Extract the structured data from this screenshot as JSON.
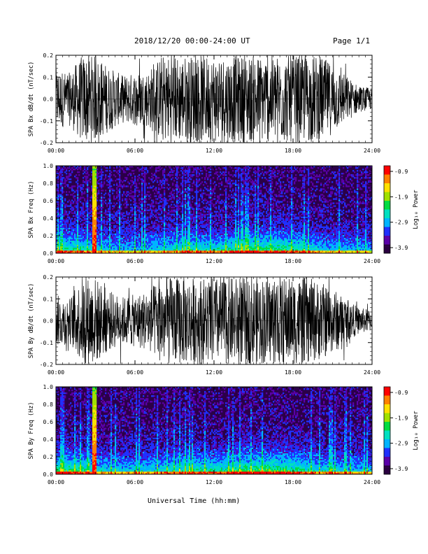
{
  "header": {
    "title": "2018/12/20  00:00-24:00 UT",
    "page": "Page 1/1"
  },
  "xaxis_title": "Universal Time (hh:mm)",
  "colorbar": {
    "label": "Log₁₀ Power",
    "ticks": [
      "-0.9",
      "-1.9",
      "-2.9",
      "-3.9"
    ]
  },
  "colors": {
    "trace": "#000000",
    "spectrogram_background": "#2b0048",
    "colormap": [
      "#2a0040",
      "#5a00a8",
      "#2030ff",
      "#00b4ff",
      "#00e0c0",
      "#00dc40",
      "#a0e000",
      "#ffe000",
      "#ff8000",
      "#ff0000"
    ]
  },
  "chart_data": [
    {
      "type": "line",
      "name": "bx-waveform",
      "ylabel": "SPA Bx dB/dt (nT/sec)",
      "xlim": [
        0,
        24
      ],
      "ylim": [
        -0.2,
        0.2
      ],
      "x_ticks": [
        "00:00",
        "06:00",
        "12:00",
        "18:00",
        "24:00"
      ],
      "y_ticks": [
        "0.2",
        "0.1",
        "0.0",
        "-0.1",
        "-0.2"
      ],
      "envelope_hours": [
        0,
        1,
        2,
        3,
        4,
        5,
        6,
        7,
        8,
        9,
        10,
        11,
        12,
        13,
        14,
        15,
        16,
        17,
        18,
        19,
        20,
        21,
        22,
        23,
        24
      ],
      "envelope_amplitude": [
        0.14,
        0.12,
        0.2,
        0.2,
        0.15,
        0.11,
        0.12,
        0.13,
        0.2,
        0.2,
        0.2,
        0.2,
        0.2,
        0.2,
        0.2,
        0.2,
        0.2,
        0.2,
        0.2,
        0.2,
        0.2,
        0.16,
        0.11,
        0.06,
        0.05
      ]
    },
    {
      "type": "heatmap",
      "name": "bx-spectrogram",
      "ylabel": "SPA Bx Freq (Hz)",
      "xlim": [
        0,
        24
      ],
      "ylim": [
        0,
        1.0
      ],
      "x_ticks": [
        "00:00",
        "06:00",
        "12:00",
        "18:00",
        "24:00"
      ],
      "y_ticks": [
        "1.0",
        "0.8",
        "0.6",
        "0.4",
        "0.2",
        "0.0"
      ],
      "zlim": [
        -3.9,
        -0.9
      ],
      "bright_band_hours": [
        2.8,
        2.9,
        3.0
      ],
      "activity_hours": [
        0,
        2,
        4,
        6,
        8,
        10,
        12,
        14,
        16,
        18,
        20,
        22,
        24
      ],
      "activity_level": [
        0.55,
        0.5,
        0.35,
        0.35,
        0.4,
        0.5,
        0.45,
        0.55,
        0.6,
        0.55,
        0.4,
        0.35,
        0.3
      ]
    },
    {
      "type": "line",
      "name": "by-waveform",
      "ylabel": "SPA By dB/dt (nT/sec)",
      "xlim": [
        0,
        24
      ],
      "ylim": [
        -0.2,
        0.2
      ],
      "x_ticks": [
        "00:00",
        "06:00",
        "12:00",
        "18:00",
        "24:00"
      ],
      "y_ticks": [
        "0.2",
        "0.1",
        "0.0",
        "-0.1",
        "-0.2"
      ],
      "envelope_hours": [
        0,
        1,
        2,
        3,
        4,
        5,
        6,
        7,
        8,
        9,
        10,
        11,
        12,
        13,
        14,
        15,
        16,
        17,
        18,
        19,
        20,
        21,
        22,
        23,
        24
      ],
      "envelope_amplitude": [
        0.12,
        0.1,
        0.2,
        0.2,
        0.14,
        0.11,
        0.12,
        0.14,
        0.2,
        0.2,
        0.2,
        0.2,
        0.2,
        0.2,
        0.2,
        0.2,
        0.2,
        0.2,
        0.2,
        0.2,
        0.18,
        0.15,
        0.1,
        0.06,
        0.05
      ]
    },
    {
      "type": "heatmap",
      "name": "by-spectrogram",
      "ylabel": "SPA By Freq (Hz)",
      "xlim": [
        0,
        24
      ],
      "ylim": [
        0,
        1.0
      ],
      "x_ticks": [
        "00:00",
        "06:00",
        "12:00",
        "18:00",
        "24:00"
      ],
      "y_ticks": [
        "1.0",
        "0.8",
        "0.6",
        "0.4",
        "0.2",
        "0.0"
      ],
      "zlim": [
        -3.9,
        -0.9
      ],
      "bright_band_hours": [
        2.8,
        2.9,
        3.0
      ],
      "activity_hours": [
        0,
        2,
        4,
        6,
        8,
        10,
        12,
        14,
        16,
        18,
        20,
        22,
        24
      ],
      "activity_level": [
        0.6,
        0.55,
        0.4,
        0.4,
        0.45,
        0.55,
        0.5,
        0.6,
        0.65,
        0.6,
        0.45,
        0.4,
        0.35
      ]
    }
  ]
}
